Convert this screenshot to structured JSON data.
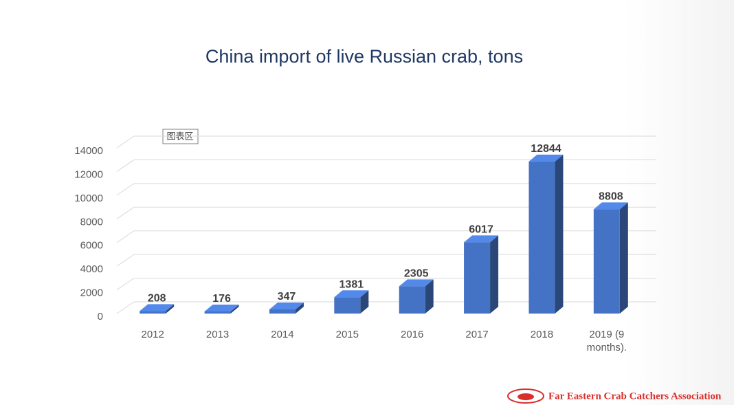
{
  "chart_data": {
    "type": "bar3d",
    "title": "China import of live Russian crab, tons",
    "categories": [
      "2012",
      "2013",
      "2014",
      "2015",
      "2016",
      "2017",
      "2018",
      "2019 (9 months)."
    ],
    "values": [
      208,
      176,
      347,
      1381,
      2305,
      6017,
      12844,
      8808
    ],
    "color": "#4472c4",
    "ylim": [
      0,
      14000
    ],
    "yticks": [
      0,
      2000,
      4000,
      6000,
      8000,
      10000,
      12000,
      14000
    ],
    "grid": true
  },
  "chart_area_tooltip": "图表区",
  "footer": "Far Eastern Crab Catchers Association"
}
